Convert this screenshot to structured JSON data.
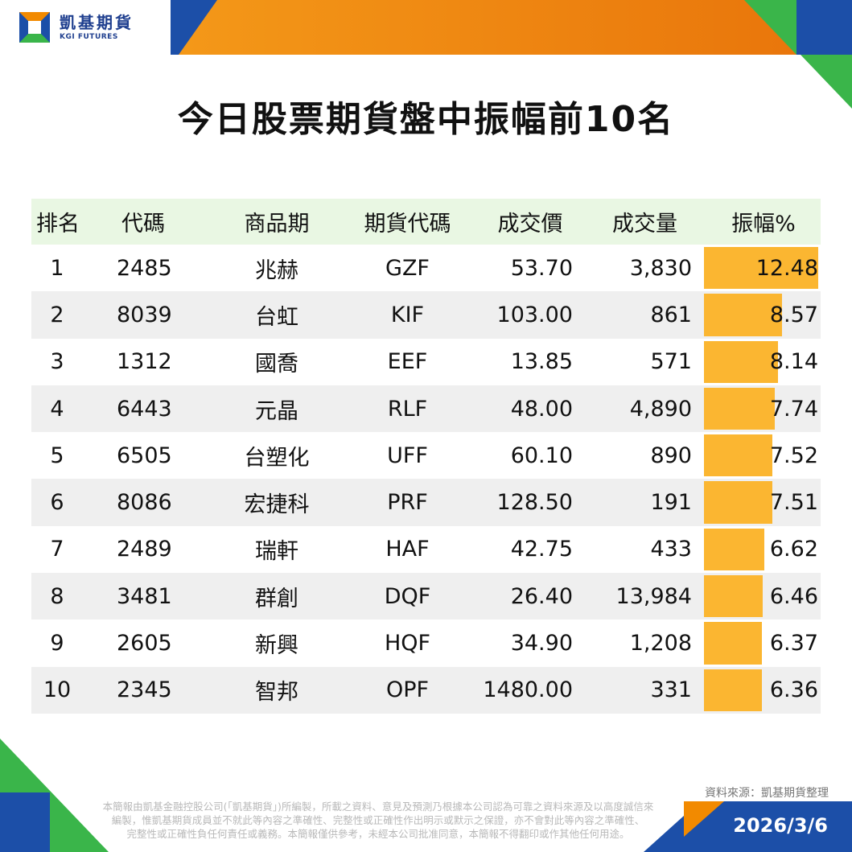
{
  "brand": {
    "name_cn": "凱基期貨",
    "name_en": "KGI FUTURES",
    "colors": {
      "orange": "#f28a00",
      "blue": "#1c4fa8",
      "green": "#3ab54a",
      "bar": "#fbb631"
    }
  },
  "title": "今日股票期貨盤中振幅前10名",
  "table": {
    "headers": [
      "排名",
      "代碼",
      "商品期",
      "期貨代碼",
      "成交價",
      "成交量",
      "振幅%"
    ],
    "rows": [
      {
        "rank": "1",
        "code": "2485",
        "name": "兆赫",
        "future": "GZF",
        "price": "53.70",
        "volume": "3,830",
        "amplitude": "12.48",
        "amp": 12.48
      },
      {
        "rank": "2",
        "code": "8039",
        "name": "台虹",
        "future": "KIF",
        "price": "103.00",
        "volume": "861",
        "amplitude": "8.57",
        "amp": 8.57
      },
      {
        "rank": "3",
        "code": "1312",
        "name": "國喬",
        "future": "EEF",
        "price": "13.85",
        "volume": "571",
        "amplitude": "8.14",
        "amp": 8.14
      },
      {
        "rank": "4",
        "code": "6443",
        "name": "元晶",
        "future": "RLF",
        "price": "48.00",
        "volume": "4,890",
        "amplitude": "7.74",
        "amp": 7.74
      },
      {
        "rank": "5",
        "code": "6505",
        "name": "台塑化",
        "future": "UFF",
        "price": "60.10",
        "volume": "890",
        "amplitude": "7.52",
        "amp": 7.52
      },
      {
        "rank": "6",
        "code": "8086",
        "name": "宏捷科",
        "future": "PRF",
        "price": "128.50",
        "volume": "191",
        "amplitude": "7.51",
        "amp": 7.51
      },
      {
        "rank": "7",
        "code": "2489",
        "name": "瑞軒",
        "future": "HAF",
        "price": "42.75",
        "volume": "433",
        "amplitude": "6.62",
        "amp": 6.62
      },
      {
        "rank": "8",
        "code": "3481",
        "name": "群創",
        "future": "DQF",
        "price": "26.40",
        "volume": "13,984",
        "amplitude": "6.46",
        "amp": 6.46
      },
      {
        "rank": "9",
        "code": "2605",
        "name": "新興",
        "future": "HQF",
        "price": "34.90",
        "volume": "1,208",
        "amplitude": "6.37",
        "amp": 6.37
      },
      {
        "rank": "10",
        "code": "2345",
        "name": "智邦",
        "future": "OPF",
        "price": "1480.00",
        "volume": "331",
        "amplitude": "6.36",
        "amp": 6.36
      }
    ]
  },
  "source": "資料來源：凱基期貨整理",
  "disclaimer": [
    "本簡報由凱基金融控股公司(「凱基期貨」)所編製，所載之資料、意見及預測乃根據本公司認為可靠之資料來源及以高度誠信來",
    "編製，惟凱基期貨成員並不就此等內容之準確性、完整性或正確性作出明示或默示之保證，亦不會對此等內容之準確性、",
    "完整性或正確性負任何責任或義務。本簡報僅供參考，未經本公司批准同意，本簡報不得翻印或作其他任何用途。"
  ],
  "date": "2026/3/6"
}
